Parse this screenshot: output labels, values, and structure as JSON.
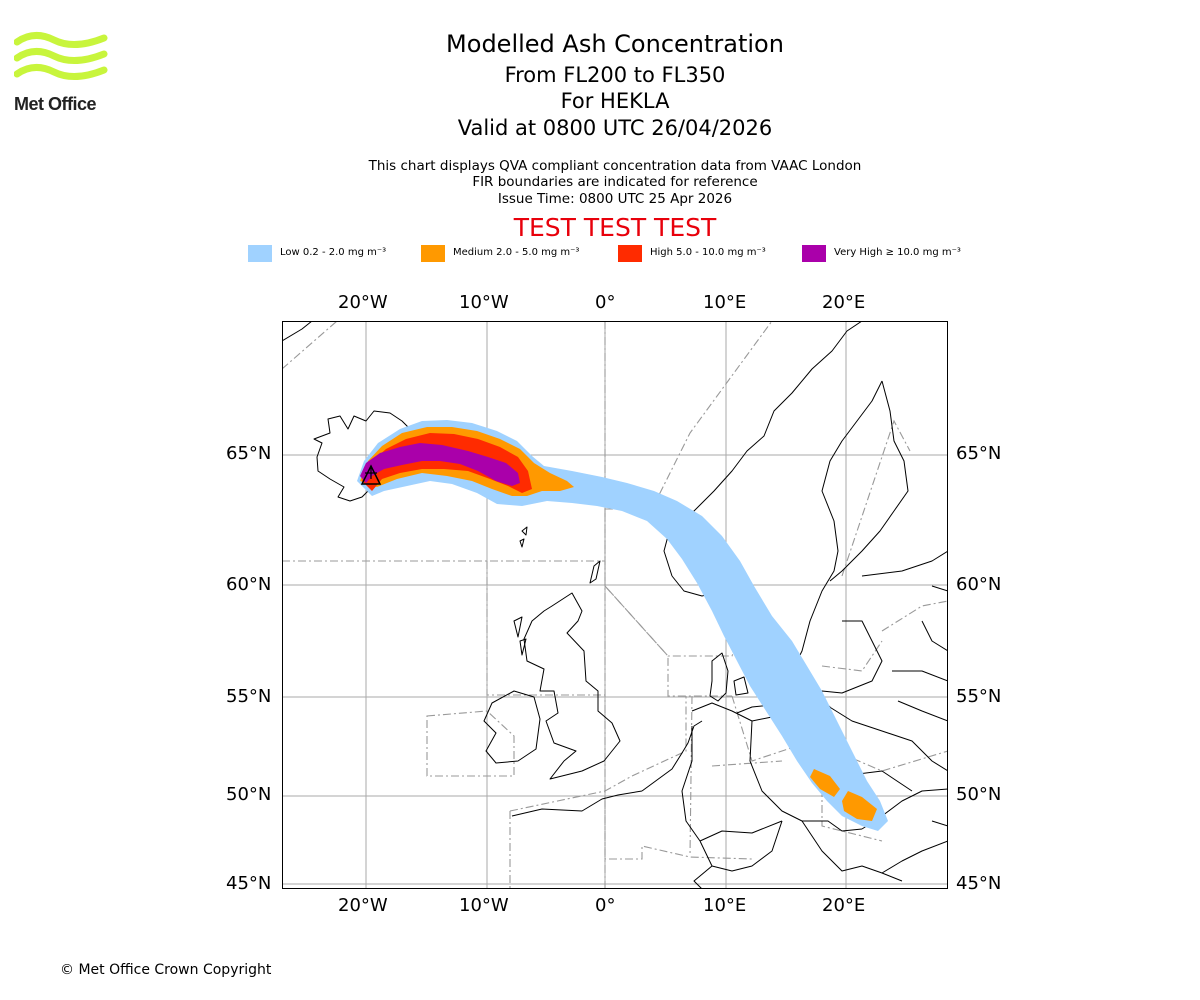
{
  "logo": {
    "text": "Met Office",
    "color": "#c8f53c"
  },
  "header": {
    "title": "Modelled Ash Concentration",
    "subtitle": "From FL200 to FL350",
    "volcano": "For HEKLA",
    "valid": "Valid at 0800 UTC 26/04/2026",
    "note1": "This chart displays QVA compliant concentration data from VAAC London",
    "note2": "FIR boundaries are indicated for reference",
    "note3": "Issue Time: 0800 UTC 25 Apr 2026",
    "test_banner": "TEST TEST TEST"
  },
  "legend": [
    {
      "label": "Low 0.2 - 2.0 mg m⁻³",
      "color": "#a0d2ff"
    },
    {
      "label": "Medium 2.0 - 5.0 mg m⁻³",
      "color": "#ff9900"
    },
    {
      "label": "High 5.0 - 10.0 mg m⁻³",
      "color": "#ff2b00"
    },
    {
      "label": "Very High ≥ 10.0 mg m⁻³",
      "color": "#aa00aa"
    }
  ],
  "map": {
    "lon_ticks": [
      "20°W",
      "10°W",
      "0°",
      "10°E",
      "20°E"
    ],
    "lat_ticks": [
      "65°N",
      "60°N",
      "55°N",
      "50°N",
      "45°N"
    ],
    "volcano_icon": "triangle-icon"
  },
  "footer": {
    "copyright": "© Met Office Crown Copyright"
  }
}
